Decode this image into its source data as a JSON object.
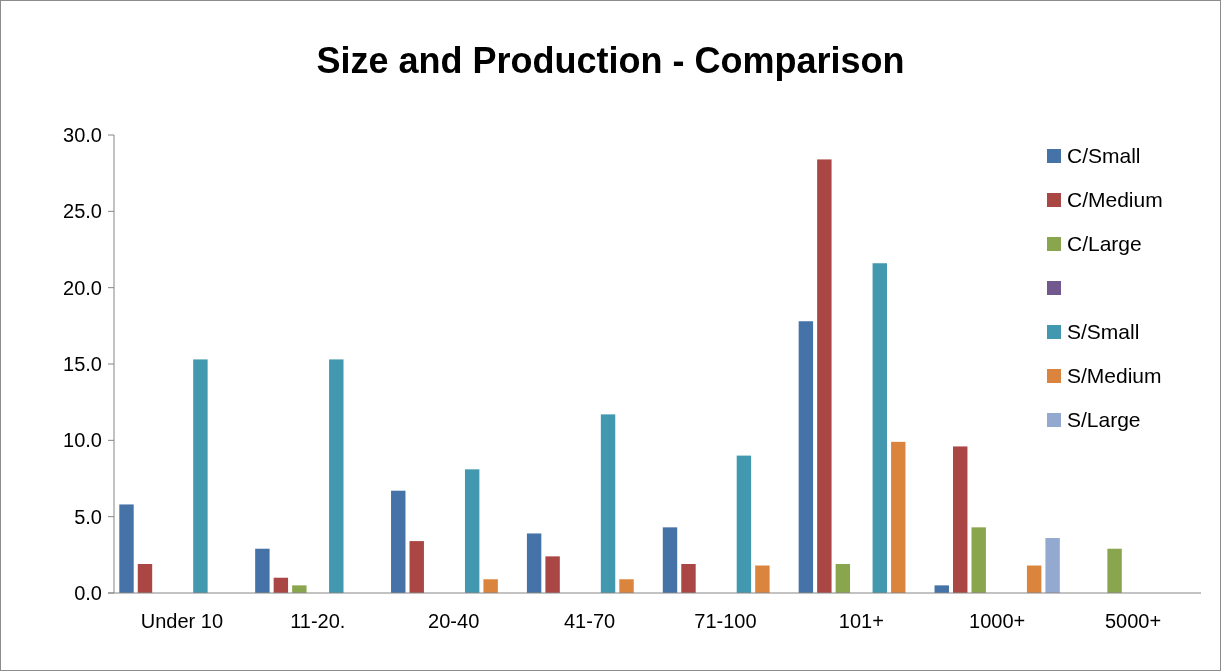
{
  "chart_data": {
    "type": "bar",
    "title": "Size and Production - Comparison",
    "categories": [
      "Under 10",
      "11-20.",
      "20-40",
      "41-70",
      "71-100",
      "101+",
      "1000+",
      "5000+"
    ],
    "series": [
      {
        "name": "C/Small",
        "color": "#4572a7",
        "values": [
          5.8,
          2.9,
          6.7,
          3.9,
          4.3,
          17.8,
          0.5,
          null
        ]
      },
      {
        "name": "C/Medium",
        "color": "#aa4643",
        "values": [
          1.9,
          1.0,
          3.4,
          2.4,
          1.9,
          28.4,
          9.6,
          null
        ]
      },
      {
        "name": "C/Large",
        "color": "#89a54e",
        "values": [
          null,
          0.5,
          null,
          null,
          null,
          1.9,
          4.3,
          2.9
        ]
      },
      {
        "color": "#71588f",
        "values": [
          null,
          null,
          null,
          null,
          null,
          null,
          null,
          null
        ]
      },
      {
        "name": "S/Small",
        "color": "#4198af",
        "values": [
          15.3,
          15.3,
          8.1,
          11.7,
          9.0,
          21.6,
          null,
          null
        ]
      },
      {
        "name": "S/Medium",
        "color": "#db843d",
        "values": [
          null,
          null,
          0.9,
          0.9,
          1.8,
          9.9,
          1.8,
          null
        ]
      },
      {
        "name": "S/Large",
        "color": "#93a9cf",
        "values": [
          null,
          null,
          null,
          null,
          null,
          null,
          3.6,
          null
        ]
      }
    ],
    "ylim": [
      0,
      30
    ],
    "yticks": [
      {
        "value": 0,
        "label": "0.0"
      },
      {
        "value": 5,
        "label": "5.0"
      },
      {
        "value": 10,
        "label": "10.0"
      },
      {
        "value": 15,
        "label": "15.0"
      },
      {
        "value": 20,
        "label": "20.0"
      },
      {
        "value": 25,
        "label": "25.0"
      },
      {
        "value": 30,
        "label": "30.0"
      }
    ],
    "legend": "right"
  }
}
